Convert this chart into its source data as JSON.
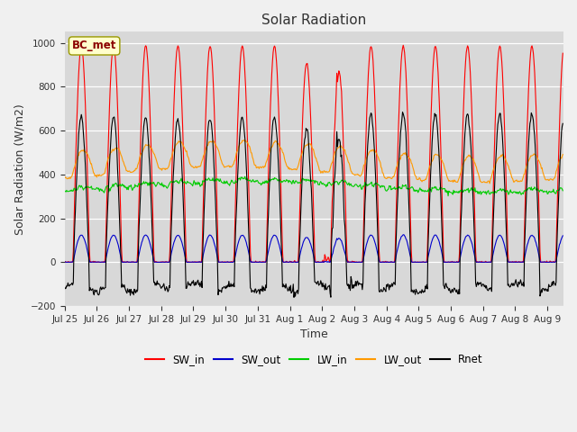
{
  "title": "Solar Radiation",
  "xlabel": "Time",
  "ylabel": "Solar Radiation (W/m2)",
  "ylim": [
    -200,
    1050
  ],
  "yticks": [
    -200,
    0,
    200,
    400,
    600,
    800,
    1000
  ],
  "n_days": 15.5,
  "date_labels": [
    "Jul 25",
    "Jul 26",
    "Jul 27",
    "Jul 28",
    "Jul 29",
    "Jul 30",
    "Jul 31",
    "Aug 1",
    "Aug 2",
    "Aug 3",
    "Aug 4",
    "Aug 5",
    "Aug 6",
    "Aug 7",
    "Aug 8",
    "Aug 9"
  ],
  "colors": {
    "SW_in": "#ff0000",
    "SW_out": "#0000cc",
    "LW_in": "#00cc00",
    "LW_out": "#ff9900",
    "Rnet": "#000000"
  },
  "legend_label": "BC_met",
  "fig_facecolor": "#f0f0f0",
  "ax_facecolor": "#d8d8d8"
}
